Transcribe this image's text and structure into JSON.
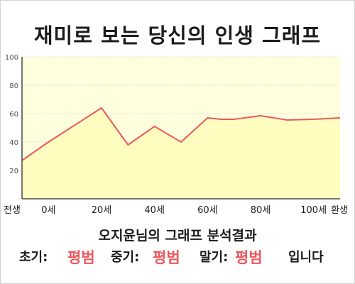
{
  "title": "재미로 보는 당신의 인생 그래프",
  "subtitle": "오지윤님의 그래프 분석결과",
  "verdict": {
    "early_label": "초기:",
    "early_value": "평범",
    "middle_label": "중기:",
    "middle_value": "평범",
    "late_label": "말기:",
    "late_value": "평범",
    "ending": "입니다"
  },
  "colors": {
    "plot_background": "#ffffdd",
    "area_fill": "#fffcbf",
    "line": "#e8595f",
    "axis": "#4a4a4a",
    "grid": "#dcdcdc",
    "highlight": "#e8595f"
  },
  "chart_data": {
    "type": "area",
    "title": "재미로 보는 당신의 인생 그래프",
    "xlabel": "",
    "ylabel": "",
    "ylim": [
      0,
      100
    ],
    "xlim": [
      -10,
      100
    ],
    "y_ticks": [
      20,
      40,
      60,
      80,
      100
    ],
    "x_ticks": [
      {
        "value": -10,
        "label": "전생"
      },
      {
        "value": 0,
        "label": "0세"
      },
      {
        "value": 20,
        "label": "20세"
      },
      {
        "value": 40,
        "label": "40세"
      },
      {
        "value": 60,
        "label": "60세"
      },
      {
        "value": 80,
        "label": "80세"
      },
      {
        "value": 100,
        "label": "100세"
      },
      {
        "value": 110,
        "label": "환생"
      }
    ],
    "grid": "horizontal",
    "legend": "none",
    "series": [
      {
        "x": [
          -10,
          0,
          20,
          30,
          40,
          50,
          60,
          65,
          70,
          80,
          90,
          100,
          110
        ],
        "values": [
          27,
          40,
          64,
          38,
          51,
          40,
          57,
          56,
          56,
          58.5,
          55.5,
          56,
          57
        ]
      }
    ]
  }
}
